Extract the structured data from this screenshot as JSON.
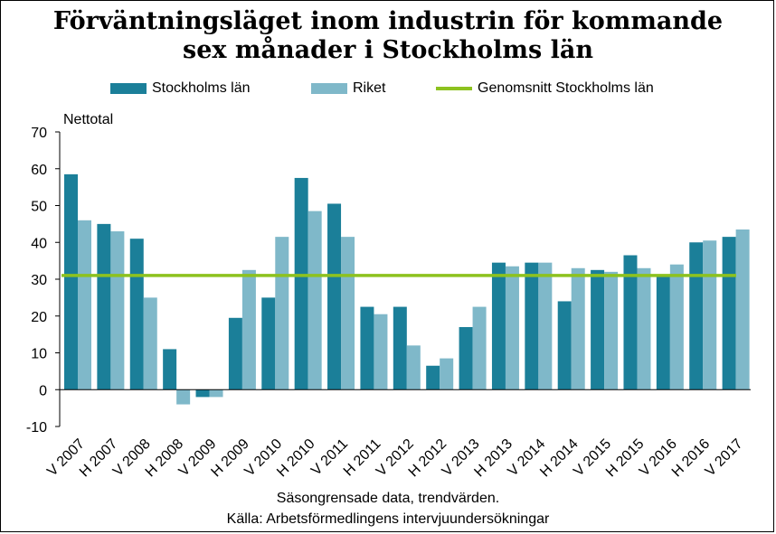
{
  "chart_data": {
    "type": "bar",
    "title_line1": "Förväntningsläget inom industrin för kommande",
    "title_line2": "sex månader i Stockholms län",
    "ylabel": "Nettotal",
    "ylim": [
      -10,
      70
    ],
    "yticks": [
      "70",
      "60",
      "50",
      "40",
      "30",
      "20",
      "10",
      "0",
      "-10"
    ],
    "ytick_values": [
      70,
      60,
      50,
      40,
      30,
      20,
      10,
      0,
      -10
    ],
    "categories": [
      "V 2007",
      "H 2007",
      "V 2008",
      "H 2008",
      "V 2009",
      "H 2009",
      "V 2010",
      "H 2010",
      "V 2011",
      "H 2011",
      "V 2012",
      "H 2012",
      "V 2013",
      "H 2013",
      "V 2014",
      "H 2014",
      "V 2015",
      "H 2015",
      "V 2016",
      "H 2016",
      "V 2017"
    ],
    "series": [
      {
        "name": "Stockholms län",
        "color": "#1b7f99",
        "values": [
          58.5,
          45,
          41,
          11,
          -2,
          19.5,
          25,
          57.5,
          50.5,
          22.5,
          22.5,
          6.5,
          17,
          34.5,
          34.5,
          24,
          32.5,
          36.5,
          31,
          40,
          41.5
        ]
      },
      {
        "name": "Riket",
        "color": "#7fb8c9",
        "values": [
          46,
          43,
          25,
          -4,
          -2,
          32.5,
          41.5,
          48.5,
          41.5,
          20.5,
          12,
          8.5,
          22.5,
          33.5,
          34.5,
          33,
          32,
          33,
          34,
          40.5,
          43.5
        ]
      }
    ],
    "average_line": {
      "name": "Genomsnitt Stockholms län",
      "color": "#8dc21f",
      "value": 31
    },
    "legend_position": "top",
    "grid": false,
    "footnote_line1": "Säsongrensade data, trendvärden.",
    "footnote_line2": "Källa: Arbetsförmedlingens  intervjuundersökningar"
  }
}
